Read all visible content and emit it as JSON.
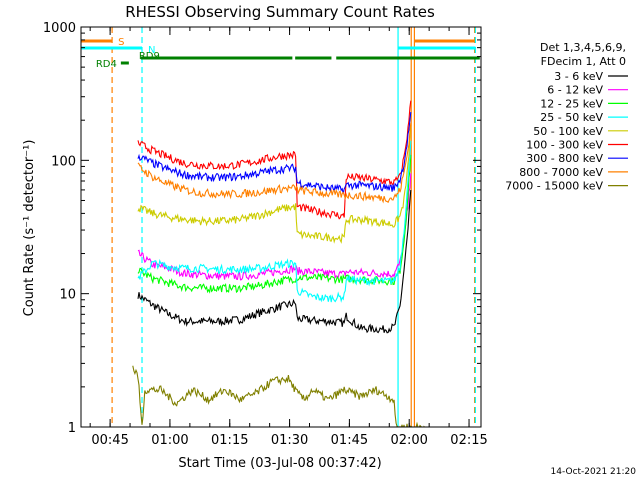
{
  "chart_data": {
    "type": "line",
    "title": "RHESSI Observing Summary Count Rates",
    "xlabel": "Start Time (03-Jul-08 00:37:42)",
    "ylabel": "Count Rate (s⁻¹ detector⁻¹)",
    "y_scale": "log",
    "ylim": [
      1,
      1000
    ],
    "x_units": "minutes after 00:37:42",
    "xlim": [
      0,
      100.3
    ],
    "y_ticks": [
      "1",
      "10",
      "100",
      "1000"
    ],
    "x_ticks": [
      {
        "t": 7.3,
        "label": "00:45"
      },
      {
        "t": 22.3,
        "label": "01:00"
      },
      {
        "t": 37.3,
        "label": "01:15"
      },
      {
        "t": 52.3,
        "label": "01:30"
      },
      {
        "t": 67.3,
        "label": "01:45"
      },
      {
        "t": 82.3,
        "label": "02:00"
      },
      {
        "t": 97.3,
        "label": "02:15"
      }
    ],
    "legend": {
      "header": [
        "Det 1,3,4,5,6,9,",
        "FDecim 1, Att 0"
      ],
      "placement": "right"
    },
    "series": [
      {
        "name": "3 - 6 keV",
        "color": "#000000",
        "points": [
          [
            14.3,
            9.8
          ],
          [
            18,
            8.2
          ],
          [
            22,
            7.0
          ],
          [
            26,
            6.2
          ],
          [
            30,
            6.2
          ],
          [
            35,
            6.2
          ],
          [
            40,
            6.4
          ],
          [
            45,
            7.2
          ],
          [
            50,
            8.0
          ],
          [
            53.8,
            8.5
          ],
          [
            54.2,
            6.5
          ],
          [
            58,
            6.3
          ],
          [
            62,
            6.2
          ],
          [
            66,
            6.0
          ],
          [
            66.5,
            6.8
          ],
          [
            70,
            5.5
          ],
          [
            76,
            5.4
          ],
          [
            78.5,
            5.6
          ],
          [
            80,
            8
          ],
          [
            81,
            15
          ],
          [
            82,
            30
          ],
          [
            82.7,
            60
          ]
        ]
      },
      {
        "name": "6 - 12 keV",
        "color": "#ff00ff",
        "points": [
          [
            14.3,
            20
          ],
          [
            18,
            16.5
          ],
          [
            22,
            15.5
          ],
          [
            26,
            14.2
          ],
          [
            30,
            13.8
          ],
          [
            35,
            13.5
          ],
          [
            40,
            13.5
          ],
          [
            45,
            14.0
          ],
          [
            50,
            14.8
          ],
          [
            53.8,
            15.5
          ],
          [
            54.2,
            14.8
          ],
          [
            58,
            14.6
          ],
          [
            62,
            14.2
          ],
          [
            66,
            14.0
          ],
          [
            66.5,
            14.6
          ],
          [
            70,
            14.4
          ],
          [
            76,
            14.2
          ],
          [
            78.5,
            14.0
          ],
          [
            80,
            17
          ],
          [
            81,
            25
          ],
          [
            82,
            45
          ],
          [
            82.7,
            80
          ]
        ]
      },
      {
        "name": "12 - 25 keV",
        "color": "#00ff00",
        "points": [
          [
            14.3,
            15
          ],
          [
            18,
            13.0
          ],
          [
            22,
            12.0
          ],
          [
            26,
            11.2
          ],
          [
            30,
            11.0
          ],
          [
            35,
            11.0
          ],
          [
            40,
            11.0
          ],
          [
            45,
            11.5
          ],
          [
            50,
            12.5
          ],
          [
            53.8,
            13.0
          ],
          [
            54.2,
            13.2
          ],
          [
            58,
            13.2
          ],
          [
            62,
            13.0
          ],
          [
            66,
            12.8
          ],
          [
            66.5,
            13.0
          ],
          [
            70,
            12.8
          ],
          [
            76,
            12.5
          ],
          [
            78.5,
            12.4
          ],
          [
            80,
            15
          ],
          [
            81,
            25
          ],
          [
            82,
            55
          ],
          [
            82.7,
            110
          ]
        ]
      },
      {
        "name": "25 - 50 keV",
        "color": "#00ffff",
        "points": [
          [
            14.3,
            13
          ],
          [
            18,
            17.0
          ],
          [
            22,
            16.0
          ],
          [
            26,
            15.5
          ],
          [
            30,
            15.5
          ],
          [
            35,
            15.2
          ],
          [
            40,
            15.2
          ],
          [
            45,
            15.5
          ],
          [
            50,
            16.5
          ],
          [
            53.8,
            17.0
          ],
          [
            54.2,
            10.5
          ],
          [
            58,
            9.5
          ],
          [
            62,
            9.2
          ],
          [
            66,
            9.5
          ],
          [
            66.5,
            13.0
          ],
          [
            70,
            12.5
          ],
          [
            76,
            12.4
          ],
          [
            78.5,
            12.5
          ],
          [
            80,
            16
          ],
          [
            81,
            30
          ],
          [
            82,
            70
          ],
          [
            82.7,
            140
          ]
        ]
      },
      {
        "name": "50 - 100 keV",
        "color": "#cccc00",
        "points": [
          [
            14.3,
            44
          ],
          [
            18,
            40
          ],
          [
            22,
            37.5
          ],
          [
            26,
            36
          ],
          [
            30,
            35
          ],
          [
            35,
            35
          ],
          [
            40,
            36
          ],
          [
            45,
            39
          ],
          [
            50,
            43
          ],
          [
            53.8,
            45
          ],
          [
            54.2,
            28
          ],
          [
            58,
            27
          ],
          [
            62,
            26.5
          ],
          [
            66,
            26
          ],
          [
            66.5,
            36
          ],
          [
            70,
            36
          ],
          [
            76,
            34
          ],
          [
            78.5,
            33
          ],
          [
            80,
            38
          ],
          [
            81,
            50
          ],
          [
            82,
            90
          ],
          [
            82.7,
            180
          ]
        ]
      },
      {
        "name": "100 - 300 keV",
        "color": "#ff0000",
        "points": [
          [
            14.3,
            135
          ],
          [
            18,
            118
          ],
          [
            22,
            105
          ],
          [
            26,
            95
          ],
          [
            30,
            92
          ],
          [
            35,
            90
          ],
          [
            40,
            93
          ],
          [
            45,
            100
          ],
          [
            50,
            108
          ],
          [
            53.8,
            110
          ],
          [
            54.2,
            45
          ],
          [
            58,
            42
          ],
          [
            62,
            40
          ],
          [
            66,
            38
          ],
          [
            66.5,
            75
          ],
          [
            70,
            74
          ],
          [
            76,
            70
          ],
          [
            78.5,
            68
          ],
          [
            80,
            75
          ],
          [
            81,
            105
          ],
          [
            82,
            170
          ],
          [
            82.7,
            280
          ]
        ]
      },
      {
        "name": "300 - 800 keV",
        "color": "#0000ff",
        "points": [
          [
            14.3,
            108
          ],
          [
            18,
            95
          ],
          [
            22,
            85
          ],
          [
            26,
            78
          ],
          [
            30,
            75
          ],
          [
            35,
            74
          ],
          [
            40,
            76
          ],
          [
            45,
            81
          ],
          [
            50,
            86
          ],
          [
            53.8,
            88
          ],
          [
            54.2,
            68
          ],
          [
            58,
            65
          ],
          [
            62,
            62
          ],
          [
            66,
            60
          ],
          [
            66.5,
            65
          ],
          [
            70,
            65
          ],
          [
            76,
            63
          ],
          [
            78.5,
            62
          ],
          [
            80,
            72
          ],
          [
            81,
            95
          ],
          [
            82,
            150
          ],
          [
            82.7,
            230
          ]
        ]
      },
      {
        "name": "800 - 7000 keV",
        "color": "#ff8000",
        "points": [
          [
            14.3,
            90
          ],
          [
            18,
            75
          ],
          [
            22,
            66
          ],
          [
            26,
            60
          ],
          [
            30,
            57
          ],
          [
            35,
            56
          ],
          [
            40,
            56
          ],
          [
            45,
            58
          ],
          [
            50,
            61
          ],
          [
            53.8,
            62
          ],
          [
            54.2,
            60
          ],
          [
            58,
            58
          ],
          [
            62,
            56
          ],
          [
            66,
            55
          ],
          [
            66.5,
            55
          ],
          [
            70,
            54
          ],
          [
            76,
            52
          ],
          [
            78.5,
            52
          ],
          [
            80,
            60
          ],
          [
            81,
            80
          ],
          [
            82,
            120
          ],
          [
            82.7,
            190
          ]
        ]
      },
      {
        "name": "7000 - 15000 keV",
        "color": "#808000",
        "points": [
          [
            13.0,
            2.8
          ],
          [
            14.3,
            2.4
          ],
          [
            15.3,
            1.0
          ],
          [
            16,
            1.9
          ],
          [
            20,
            1.9
          ],
          [
            24,
            1.5
          ],
          [
            28,
            1.9
          ],
          [
            32,
            1.6
          ],
          [
            36,
            1.9
          ],
          [
            40,
            1.6
          ],
          [
            44,
            1.8
          ],
          [
            48,
            2.2
          ],
          [
            52,
            2.3
          ],
          [
            54.2,
            1.8
          ],
          [
            56,
            1.6
          ],
          [
            58,
            1.9
          ],
          [
            62,
            1.6
          ],
          [
            66,
            1.9
          ],
          [
            70,
            1.7
          ],
          [
            74,
            1.9
          ],
          [
            78.5,
            1.6
          ],
          [
            79,
            1.0
          ],
          [
            84.5,
            1.0
          ],
          [
            87,
            1.0
          ]
        ]
      }
    ],
    "vertical_markers": [
      {
        "t": 7.8,
        "color": "#ff8000",
        "style": "dashed"
      },
      {
        "t": 15.3,
        "color": "#00ffff",
        "style": "dashed"
      },
      {
        "t": 79.5,
        "color": "#00ffff",
        "style": "solid"
      },
      {
        "t": 82.8,
        "color": "#ff8000",
        "style": "solid"
      },
      {
        "t": 83.6,
        "color": "#ff8000",
        "style": "solid"
      },
      {
        "t": 98.7,
        "color": "#ff8000",
        "style": "dashed"
      },
      {
        "t": 98.9,
        "color": "#00ffff",
        "style": "dashed"
      }
    ],
    "status_bars": [
      {
        "label": "S",
        "color": "#ff8000",
        "segments": [
          [
            0,
            7.8
          ],
          [
            83.6,
            98.7
          ]
        ]
      },
      {
        "label": "N",
        "color": "#00ffff",
        "segments": [
          [
            0,
            15.3
          ],
          [
            79.5,
            98.9
          ]
        ]
      },
      {
        "label": "RD9",
        "color": "#008000",
        "segments": [
          [
            15,
            53
          ],
          [
            53.7,
            62.8
          ],
          [
            64,
            100
          ]
        ]
      },
      {
        "label": "RD4",
        "color": "#008000",
        "segments": [
          [
            10,
            12
          ]
        ]
      }
    ]
  },
  "timestamp": "14-Oct-2021 21:20"
}
